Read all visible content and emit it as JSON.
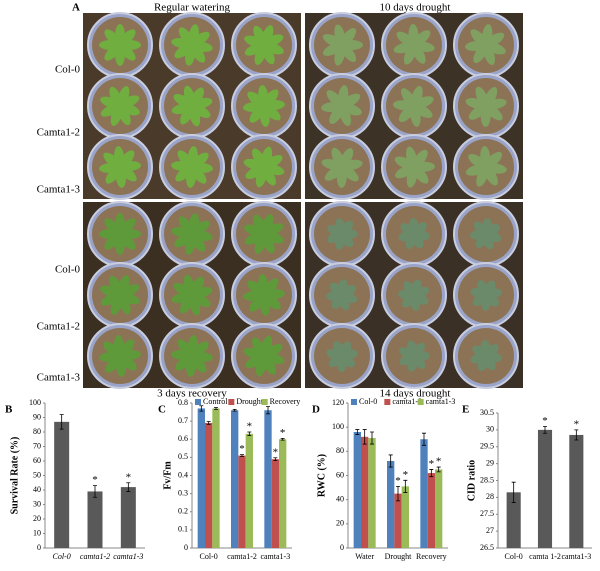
{
  "panel_a": {
    "panel_label": "A",
    "column_titles": [
      "Regular watering",
      "10 days drought"
    ],
    "bottom_titles": [
      "3 days recovery",
      "14 days drought"
    ],
    "row_labels": [
      "Col-0",
      "Camta1-2",
      "Camta1-3",
      "Col-0",
      "Camta1-2",
      "Camta1-3"
    ]
  },
  "chart_data": [
    {
      "type": "bar",
      "panel_label": "B",
      "ylabel": "Survival Rate (%)",
      "categories": [
        "Col-0",
        "camta1-2",
        "camta1-3"
      ],
      "values": [
        87,
        39,
        42
      ],
      "errors": [
        5,
        4,
        3
      ],
      "markers": [
        null,
        "*",
        "*"
      ],
      "color": "#595959",
      "ylim": [
        0,
        100
      ],
      "yticks": [
        0,
        10,
        20,
        30,
        40,
        50,
        60,
        70,
        80,
        90,
        100
      ]
    },
    {
      "type": "bar",
      "panel_label": "C",
      "ylabel": "Fv/Fm",
      "categories": [
        "Col-0",
        "camta1-2",
        "camta1-3"
      ],
      "series": [
        {
          "name": "Control",
          "color": "#4f81bd",
          "values": [
            0.77,
            0.76,
            0.76
          ],
          "errors": [
            0.015,
            0.005,
            0.02
          ],
          "markers": [
            null,
            null,
            null
          ]
        },
        {
          "name": "Drought",
          "color": "#c0504d",
          "values": [
            0.69,
            0.51,
            0.49
          ],
          "errors": [
            0.008,
            0.005,
            0.008
          ],
          "markers": [
            null,
            "*",
            "*"
          ]
        },
        {
          "name": "Recovery",
          "color": "#9bbb59",
          "values": [
            0.77,
            0.63,
            0.6
          ],
          "errors": [
            0.005,
            0.01,
            0.005
          ],
          "markers": [
            null,
            "*",
            "*"
          ]
        }
      ],
      "ylim": [
        0,
        0.8
      ],
      "yticks": [
        0,
        0.1,
        0.2,
        0.3,
        0.4,
        0.5,
        0.6,
        0.7,
        0.8
      ]
    },
    {
      "type": "bar",
      "panel_label": "D",
      "ylabel": "RWC (%)",
      "categories": [
        "Water",
        "Drought",
        "Recovery"
      ],
      "series": [
        {
          "name": "Col-0",
          "color": "#4f81bd",
          "values": [
            96,
            72,
            90
          ],
          "errors": [
            2,
            5,
            5
          ],
          "markers": [
            null,
            null,
            null
          ]
        },
        {
          "name": "camta1-2",
          "color": "#c0504d",
          "values": [
            92,
            45,
            62
          ],
          "errors": [
            6,
            6,
            3
          ],
          "markers": [
            null,
            "*",
            "*"
          ]
        },
        {
          "name": "camta1-3",
          "color": "#9bbb59",
          "values": [
            91,
            51,
            65
          ],
          "errors": [
            5,
            5,
            2
          ],
          "markers": [
            null,
            "*",
            "*"
          ]
        }
      ],
      "ylim": [
        0,
        120
      ],
      "yticks": [
        0,
        20,
        40,
        60,
        80,
        100,
        120
      ]
    },
    {
      "type": "bar",
      "panel_label": "E",
      "ylabel": "CID ratio",
      "categories": [
        "Col-0",
        "camta 1-2",
        "camta1-3"
      ],
      "values": [
        28.15,
        30,
        29.85
      ],
      "errors": [
        0.3,
        0.1,
        0.15
      ],
      "markers": [
        null,
        "*",
        "*"
      ],
      "color": "#595959",
      "ylim": [
        26.5,
        30.5
      ],
      "yticks": [
        26.5,
        27,
        27.5,
        28,
        28.5,
        29,
        29.5,
        30,
        30.5
      ]
    }
  ]
}
